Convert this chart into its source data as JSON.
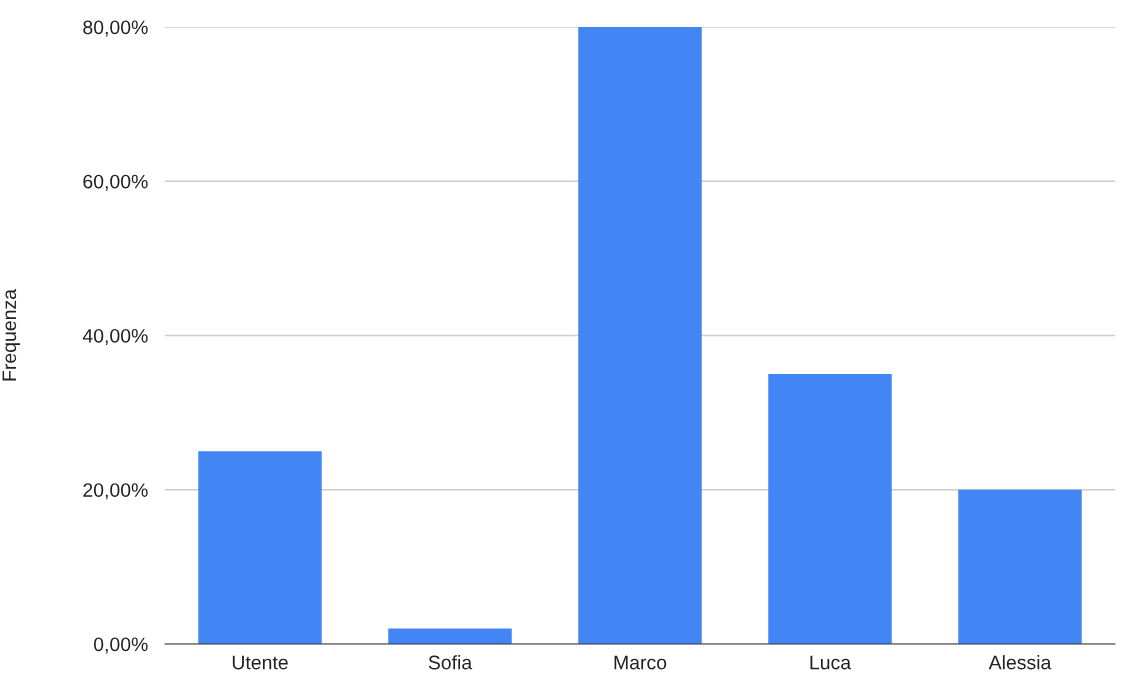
{
  "chart_data": {
    "type": "bar",
    "ylabel": "Frequenza",
    "categories": [
      "Utente",
      "Sofia",
      "Marco",
      "Luca",
      "Alessia"
    ],
    "values": [
      25,
      2,
      80,
      35,
      20
    ],
    "color": "#4285f4",
    "ylim": [
      0,
      80
    ],
    "yticks": [
      {
        "value": 0,
        "label": "0,00%"
      },
      {
        "value": 20,
        "label": "20,00%"
      },
      {
        "value": 40,
        "label": "40,00%"
      },
      {
        "value": 60,
        "label": "60,00%"
      },
      {
        "value": 80,
        "label": "80,00%"
      }
    ],
    "grid": "y"
  }
}
